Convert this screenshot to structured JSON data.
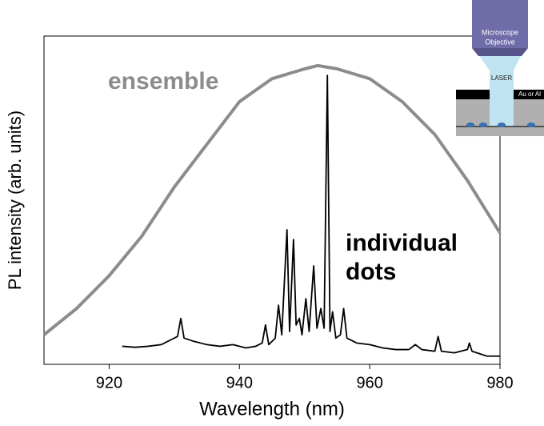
{
  "chart_data": {
    "type": "line",
    "x_label": "Wavelength (nm)",
    "y_label": "PL intensity (arb. units)",
    "xlim": [
      910,
      980
    ],
    "xticks": [
      920,
      940,
      960,
      980
    ],
    "ylim": [
      0,
      1
    ],
    "series": [
      {
        "name": "ensemble",
        "color": "#8c8c8c",
        "x": [
          910,
          915,
          920,
          925,
          930,
          935,
          940,
          945,
          950,
          952,
          955,
          960,
          965,
          970,
          975,
          980
        ],
        "values": [
          0.09,
          0.17,
          0.27,
          0.39,
          0.54,
          0.67,
          0.8,
          0.87,
          0.9,
          0.91,
          0.9,
          0.87,
          0.8,
          0.7,
          0.56,
          0.4
        ]
      },
      {
        "name": "individual dots",
        "color": "#000000",
        "x": [
          922,
          924,
          926,
          928,
          929.5,
          930.5,
          931,
          931.5,
          933,
          935,
          937,
          939,
          941,
          942.5,
          943.5,
          944,
          944.5,
          945.5,
          946,
          946.5,
          947.3,
          947.7,
          948.3,
          948.7,
          949.2,
          949.6,
          950.2,
          950.7,
          951.4,
          951.9,
          952.5,
          953,
          953.5,
          953.9,
          954.3,
          954.8,
          955.5,
          956,
          956.5,
          958,
          960,
          962,
          964,
          966,
          967,
          968,
          970,
          970.5,
          971,
          973,
          975,
          975.3,
          975.7,
          978,
          980
        ],
        "values": [
          0.055,
          0.052,
          0.055,
          0.06,
          0.075,
          0.085,
          0.14,
          0.08,
          0.07,
          0.06,
          0.055,
          0.06,
          0.05,
          0.055,
          0.065,
          0.12,
          0.06,
          0.08,
          0.18,
          0.09,
          0.41,
          0.1,
          0.38,
          0.12,
          0.14,
          0.09,
          0.2,
          0.1,
          0.3,
          0.11,
          0.17,
          0.11,
          0.88,
          0.1,
          0.16,
          0.08,
          0.09,
          0.17,
          0.08,
          0.065,
          0.06,
          0.05,
          0.045,
          0.045,
          0.06,
          0.045,
          0.04,
          0.085,
          0.04,
          0.035,
          0.045,
          0.065,
          0.04,
          0.025,
          0.025
        ]
      }
    ]
  },
  "inset": {
    "objective": [
      "Microscope",
      "Objective"
    ],
    "beam": "LASER",
    "layer": "Au or Al"
  }
}
